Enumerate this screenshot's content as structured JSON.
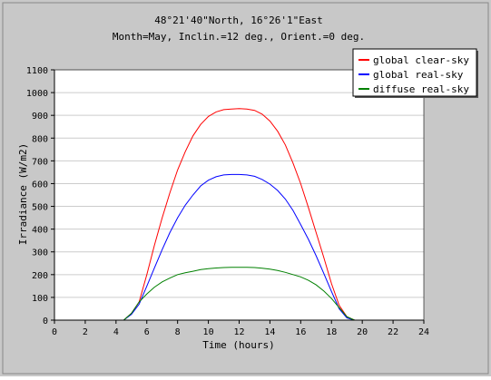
{
  "header": {
    "title_line1": "48°21'40\"North, 16°26'1\"East",
    "title_line2": "Month=May, Inclin.=12 deg., Orient.=0 deg."
  },
  "colors": {
    "frame_bg": "#c8c8c8",
    "plot_bg": "#ffffff",
    "grid": "#cccccc",
    "axis": "#000000"
  },
  "chart_data": {
    "type": "line",
    "xlabel": "Time (hours)",
    "ylabel": "Irradiance (W/m2)",
    "xlim": [
      0,
      24
    ],
    "ylim": [
      0,
      1100
    ],
    "xticks": [
      0,
      2,
      4,
      6,
      8,
      10,
      12,
      14,
      16,
      18,
      20,
      22,
      24
    ],
    "yticks": [
      0,
      100,
      200,
      300,
      400,
      500,
      600,
      700,
      800,
      900,
      1000,
      1100
    ],
    "grid": "horizontal",
    "legend_position": "top-right",
    "series": [
      {
        "name": "global clear-sky",
        "color": "#ff0000",
        "x": [
          4.5,
          5.0,
          5.5,
          6.0,
          6.5,
          7.0,
          7.5,
          8.0,
          8.5,
          9.0,
          9.5,
          10.0,
          10.5,
          11.0,
          11.5,
          12.0,
          12.5,
          13.0,
          13.5,
          14.0,
          14.5,
          15.0,
          15.5,
          16.0,
          16.5,
          17.0,
          17.5,
          18.0,
          18.5,
          19.0,
          19.5
        ],
        "values": [
          0,
          30,
          80,
          200,
          330,
          450,
          560,
          660,
          740,
          810,
          860,
          895,
          915,
          925,
          928,
          930,
          928,
          922,
          905,
          875,
          830,
          770,
          690,
          600,
          495,
          385,
          275,
          160,
          65,
          15,
          0
        ]
      },
      {
        "name": "global real-sky",
        "color": "#0000ff",
        "x": [
          4.5,
          5.0,
          5.5,
          6.0,
          6.5,
          7.0,
          7.5,
          8.0,
          8.5,
          9.0,
          9.5,
          10.0,
          10.5,
          11.0,
          11.5,
          12.0,
          12.5,
          13.0,
          13.5,
          14.0,
          14.5,
          15.0,
          15.5,
          16.0,
          16.5,
          17.0,
          17.5,
          18.0,
          18.5,
          19.0,
          19.5
        ],
        "values": [
          0,
          25,
          70,
          150,
          230,
          310,
          385,
          450,
          505,
          550,
          590,
          615,
          630,
          638,
          640,
          640,
          638,
          632,
          618,
          598,
          570,
          532,
          482,
          420,
          355,
          283,
          205,
          125,
          50,
          10,
          0
        ]
      },
      {
        "name": "diffuse real-sky",
        "color": "#008000",
        "x": [
          4.5,
          5.0,
          5.5,
          6.0,
          6.5,
          7.0,
          7.5,
          8.0,
          8.5,
          9.0,
          9.5,
          10.0,
          10.5,
          11.0,
          11.5,
          12.0,
          12.5,
          13.0,
          13.5,
          14.0,
          14.5,
          15.0,
          15.5,
          16.0,
          16.5,
          17.0,
          17.5,
          18.0,
          18.5,
          19.0,
          19.5
        ],
        "values": [
          0,
          30,
          80,
          115,
          145,
          168,
          185,
          200,
          208,
          215,
          222,
          226,
          229,
          231,
          232,
          232,
          232,
          231,
          228,
          224,
          218,
          210,
          200,
          190,
          175,
          155,
          128,
          95,
          55,
          15,
          0
        ]
      }
    ]
  }
}
